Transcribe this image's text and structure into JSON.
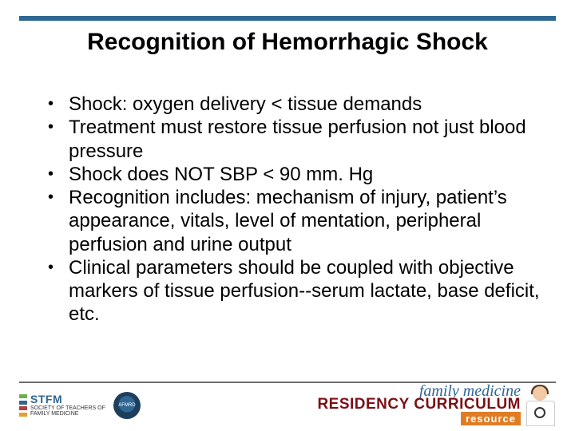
{
  "colors": {
    "top_rule": "#2f6693",
    "bottom_rule": "#6d6d6d",
    "title_text": "#000000",
    "body_text": "#000000",
    "background": "#ffffff",
    "fm_script": "#2f6693",
    "rcr_main": "#7a1016",
    "rcr_sub_bg": "#e07c25",
    "rcr_sub_text": "#ffffff"
  },
  "typography": {
    "title_fontsize": 30,
    "body_fontsize": 24,
    "font_family": "Arial"
  },
  "title": "Recognition of Hemorrhagic Shock",
  "bullets": [
    "Shock: oxygen delivery < tissue demands",
    "Treatment must restore tissue perfusion not just blood pressure",
    "Shock does NOT SBP < 90 mm. Hg",
    "Recognition includes: mechanism of injury, patient’s appearance, vitals, level of mentation, peripheral perfusion and urine output",
    "Clinical parameters should be coupled with objective markers of tissue perfusion--serum lactate, base deficit, etc."
  ],
  "footer": {
    "stfm": {
      "brand": "STFM",
      "line1": "SOCIETY OF TEACHERS OF",
      "line2": "FAMILY MEDICINE"
    },
    "afmrd": "AFMRD",
    "fm_script": "family medicine",
    "rcr_main": "RESIDENCY CURRICULUM",
    "rcr_sub": "resource"
  }
}
